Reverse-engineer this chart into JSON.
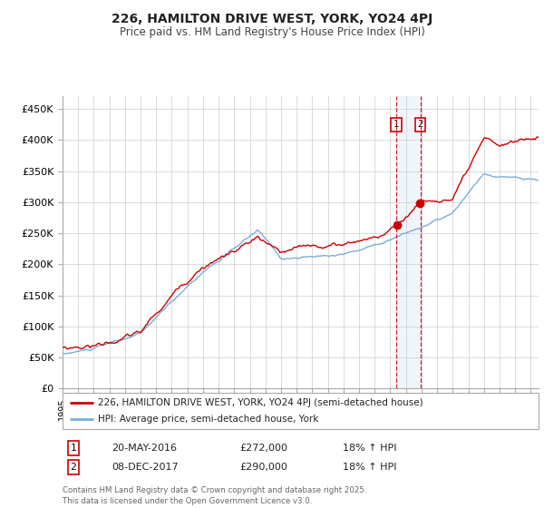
{
  "title": "226, HAMILTON DRIVE WEST, YORK, YO24 4PJ",
  "subtitle": "Price paid vs. HM Land Registry's House Price Index (HPI)",
  "ylabel_ticks": [
    "£0",
    "£50K",
    "£100K",
    "£150K",
    "£200K",
    "£250K",
    "£300K",
    "£350K",
    "£400K",
    "£450K"
  ],
  "ytick_values": [
    0,
    50000,
    100000,
    150000,
    200000,
    250000,
    300000,
    350000,
    400000,
    450000
  ],
  "xlim_start": 1995.0,
  "xlim_end": 2025.5,
  "ylim_min": 0,
  "ylim_max": 470000,
  "line1_color": "#cc0000",
  "line2_color": "#7aaddc",
  "marker1_date": 2016.38,
  "marker1_price": 272000,
  "marker2_date": 2017.93,
  "marker2_price": 290000,
  "legend_label1": "226, HAMILTON DRIVE WEST, YORK, YO24 4PJ (semi-detached house)",
  "legend_label2": "HPI: Average price, semi-detached house, York",
  "table_row1": [
    "1",
    "20-MAY-2016",
    "£272,000",
    "18% ↑ HPI"
  ],
  "table_row2": [
    "2",
    "08-DEC-2017",
    "£290,000",
    "18% ↑ HPI"
  ],
  "footnote": "Contains HM Land Registry data © Crown copyright and database right 2025.\nThis data is licensed under the Open Government Licence v3.0.",
  "background_color": "#ffffff",
  "grid_color": "#cccccc"
}
